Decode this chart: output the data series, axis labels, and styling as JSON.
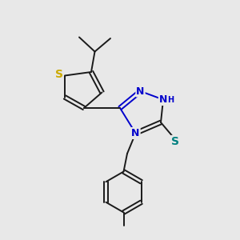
{
  "background_color": "#e8e8e8",
  "bond_color": "#1a1a1a",
  "S_color": "#ccaa00",
  "N_color": "#0000cc",
  "SH_color": "#008080",
  "font_size": 9,
  "figsize": [
    3.0,
    3.0
  ],
  "dpi": 100,
  "lw": 1.4,
  "xlim": [
    0,
    10
  ],
  "ylim": [
    0,
    10
  ]
}
